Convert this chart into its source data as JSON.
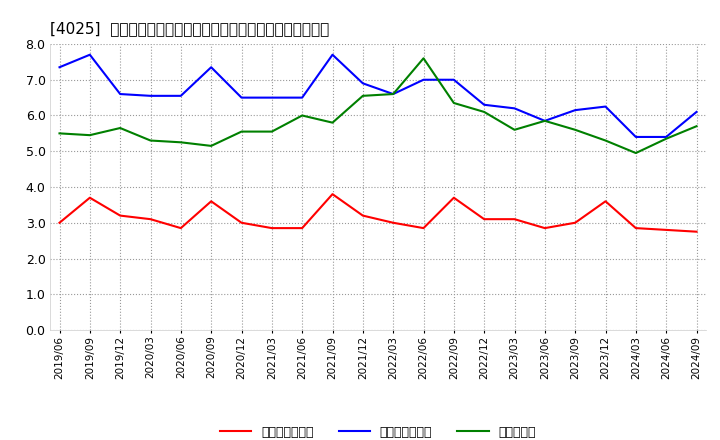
{
  "title": "[4025]  売上債権回転率、買入債務回転率、在庫回転率の推移",
  "x_labels": [
    "2019/06",
    "2019/09",
    "2019/12",
    "2020/03",
    "2020/06",
    "2020/09",
    "2020/12",
    "2021/03",
    "2021/06",
    "2021/09",
    "2021/12",
    "2022/03",
    "2022/06",
    "2022/09",
    "2022/12",
    "2023/03",
    "2023/06",
    "2023/09",
    "2023/12",
    "2024/03",
    "2024/06",
    "2024/09"
  ],
  "売上債権回転率": [
    3.0,
    3.7,
    3.2,
    3.1,
    2.85,
    3.6,
    3.0,
    2.85,
    2.85,
    3.8,
    3.2,
    3.0,
    2.85,
    3.7,
    3.1,
    3.1,
    2.85,
    3.0,
    3.6,
    2.85,
    2.8,
    2.75
  ],
  "買入債務回転率": [
    7.35,
    7.7,
    6.6,
    6.55,
    6.55,
    7.35,
    6.5,
    6.5,
    6.5,
    7.7,
    6.9,
    6.6,
    7.0,
    7.0,
    6.3,
    6.2,
    5.85,
    6.15,
    6.25,
    5.4,
    5.4,
    6.1
  ],
  "在庫回転率": [
    5.5,
    5.45,
    5.65,
    5.3,
    5.25,
    5.15,
    5.55,
    5.55,
    6.0,
    5.8,
    6.55,
    6.6,
    7.6,
    6.35,
    6.1,
    5.6,
    5.85,
    5.6,
    5.3,
    4.95,
    5.35,
    5.7
  ],
  "line_colors": {
    "売上債権回転率": "#ff0000",
    "買入債務回転率": "#0000ff",
    "在庫回転率": "#008000"
  },
  "ylim": [
    0.0,
    8.0
  ],
  "yticks": [
    0.0,
    1.0,
    2.0,
    3.0,
    4.0,
    5.0,
    6.0,
    7.0,
    8.0
  ],
  "background_color": "#ffffff",
  "grid_color": "#aaaaaa",
  "title_fontsize": 11,
  "legend_labels": [
    "売上債権回転率",
    "買入債務回転率",
    "在庫回転率"
  ]
}
